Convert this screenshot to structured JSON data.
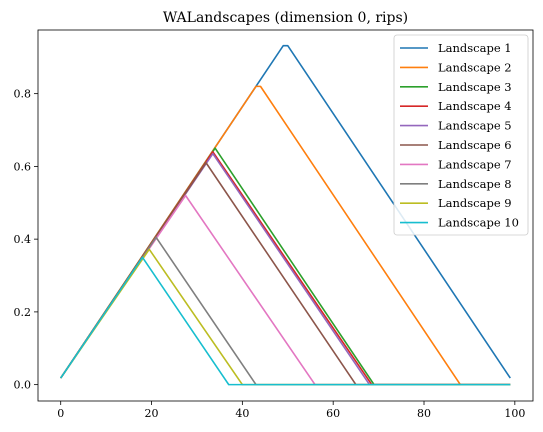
{
  "chart_data": {
    "type": "line",
    "title": "WALandscapes (dimension 0, rips)",
    "xlabel": "",
    "ylabel": "",
    "xlim": [
      -5,
      104
    ],
    "ylim": [
      -0.045,
      0.975
    ],
    "xticks": [
      0,
      20,
      40,
      60,
      80,
      100
    ],
    "xtick_labels": [
      "0",
      "20",
      "40",
      "60",
      "80",
      "100"
    ],
    "yticks": [
      0.0,
      0.2,
      0.4,
      0.6,
      0.8
    ],
    "ytick_labels": [
      "0.0",
      "0.2",
      "0.4",
      "0.6",
      "0.8"
    ],
    "grid": false,
    "legend_position": "top-right",
    "series": [
      {
        "name": "Landscape 1",
        "color": "#1f77b4",
        "x": [
          0,
          49,
          50,
          99
        ],
        "y": [
          0.018,
          0.932,
          0.932,
          0.018
        ]
      },
      {
        "name": "Landscape 2",
        "color": "#ff7f0e",
        "x": [
          0,
          43,
          44,
          88,
          99
        ],
        "y": [
          0.018,
          0.82,
          0.82,
          0.0,
          0.0
        ]
      },
      {
        "name": "Landscape 3",
        "color": "#2ca02c",
        "x": [
          0,
          34,
          69,
          99
        ],
        "y": [
          0.018,
          0.65,
          0.0,
          0.0
        ]
      },
      {
        "name": "Landscape 4",
        "color": "#d62728",
        "x": [
          0,
          33.5,
          68.5,
          99
        ],
        "y": [
          0.018,
          0.64,
          0.0,
          0.0
        ]
      },
      {
        "name": "Landscape 5",
        "color": "#9467bd",
        "x": [
          0,
          33.5,
          68,
          99
        ],
        "y": [
          0.018,
          0.635,
          0.0,
          0.0
        ]
      },
      {
        "name": "Landscape 6",
        "color": "#8c564b",
        "x": [
          0,
          32,
          65,
          99
        ],
        "y": [
          0.018,
          0.61,
          0.0,
          0.0
        ]
      },
      {
        "name": "Landscape 7",
        "color": "#e377c2",
        "x": [
          0,
          27.5,
          56,
          99
        ],
        "y": [
          0.018,
          0.52,
          0.0,
          0.0
        ]
      },
      {
        "name": "Landscape 8",
        "color": "#7f7f7f",
        "x": [
          0,
          21,
          43,
          99
        ],
        "y": [
          0.018,
          0.405,
          0.0,
          0.0
        ]
      },
      {
        "name": "Landscape 9",
        "color": "#bcbd22",
        "x": [
          0,
          19.5,
          40,
          99
        ],
        "y": [
          0.018,
          0.372,
          0.0,
          0.0
        ]
      },
      {
        "name": "Landscape 10",
        "color": "#17becf",
        "x": [
          0,
          18,
          37,
          99
        ],
        "y": [
          0.018,
          0.35,
          0.0,
          0.0
        ]
      }
    ]
  }
}
